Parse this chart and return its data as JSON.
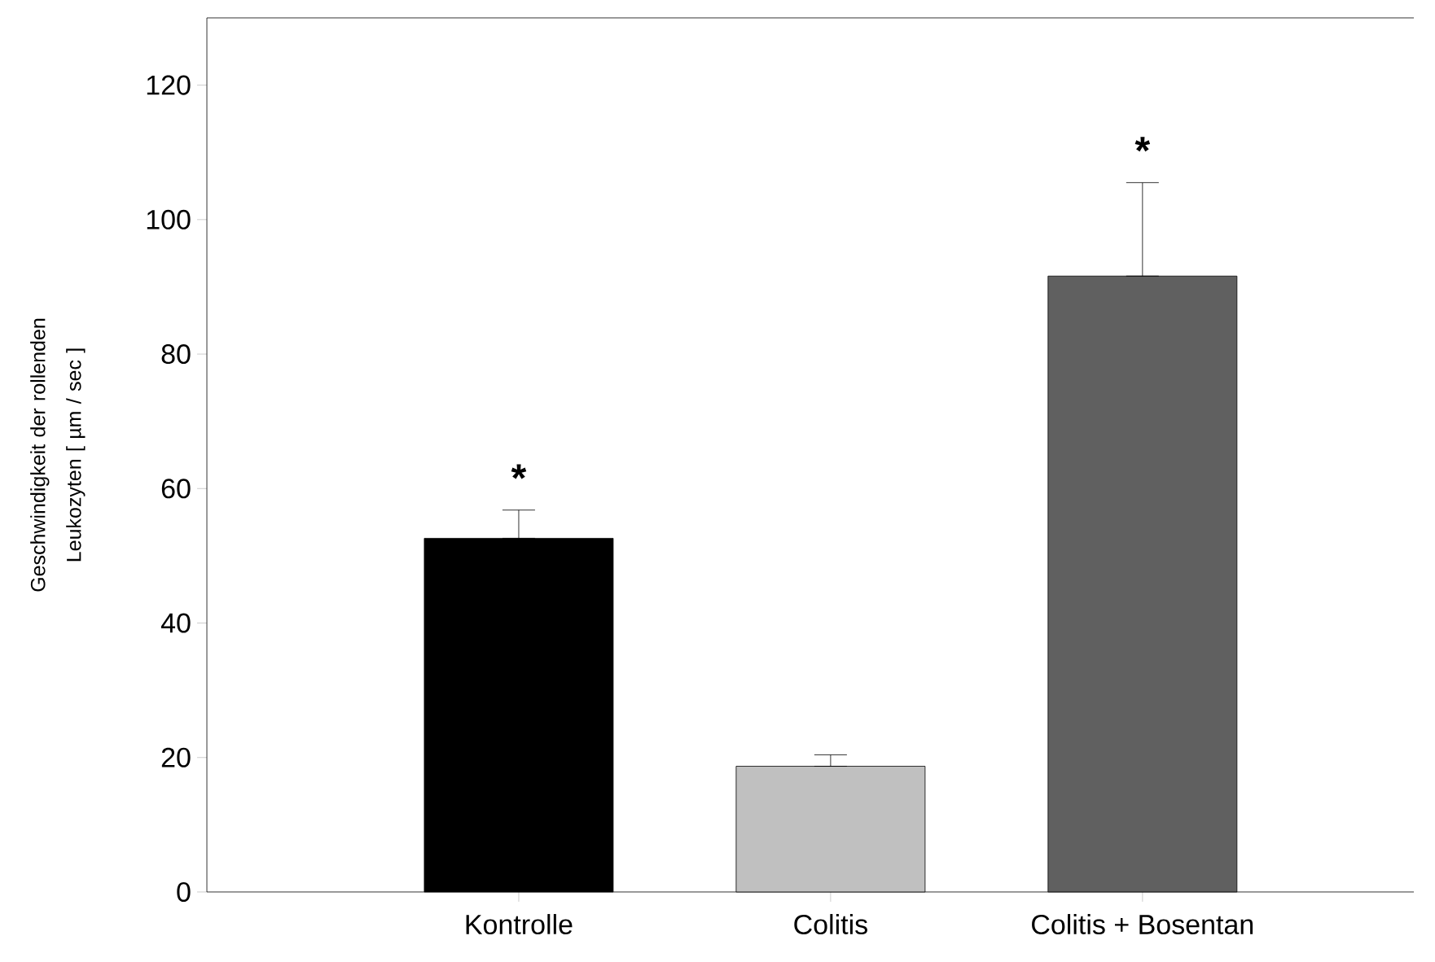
{
  "chart_data": {
    "type": "bar",
    "ylabel": "Geschwindigkeit der rollenden Leukozyten [ µm / sec ]",
    "categories": [
      "Kontrolle",
      "Colitis",
      "Colitis + Bosentan"
    ],
    "values": [
      52.6,
      18.7,
      91.6
    ],
    "colors": [
      "#000000",
      "#c0c0c0",
      "#606060"
    ],
    "errors": [
      [
        52.6,
        56.8
      ],
      [
        18.7,
        20.4
      ],
      [
        91.6,
        105.5
      ]
    ],
    "ylim": [
      0,
      130
    ],
    "yticks": [
      0,
      20,
      40,
      60,
      80,
      100,
      120
    ],
    "annotations": [
      "*",
      "*"
    ]
  }
}
